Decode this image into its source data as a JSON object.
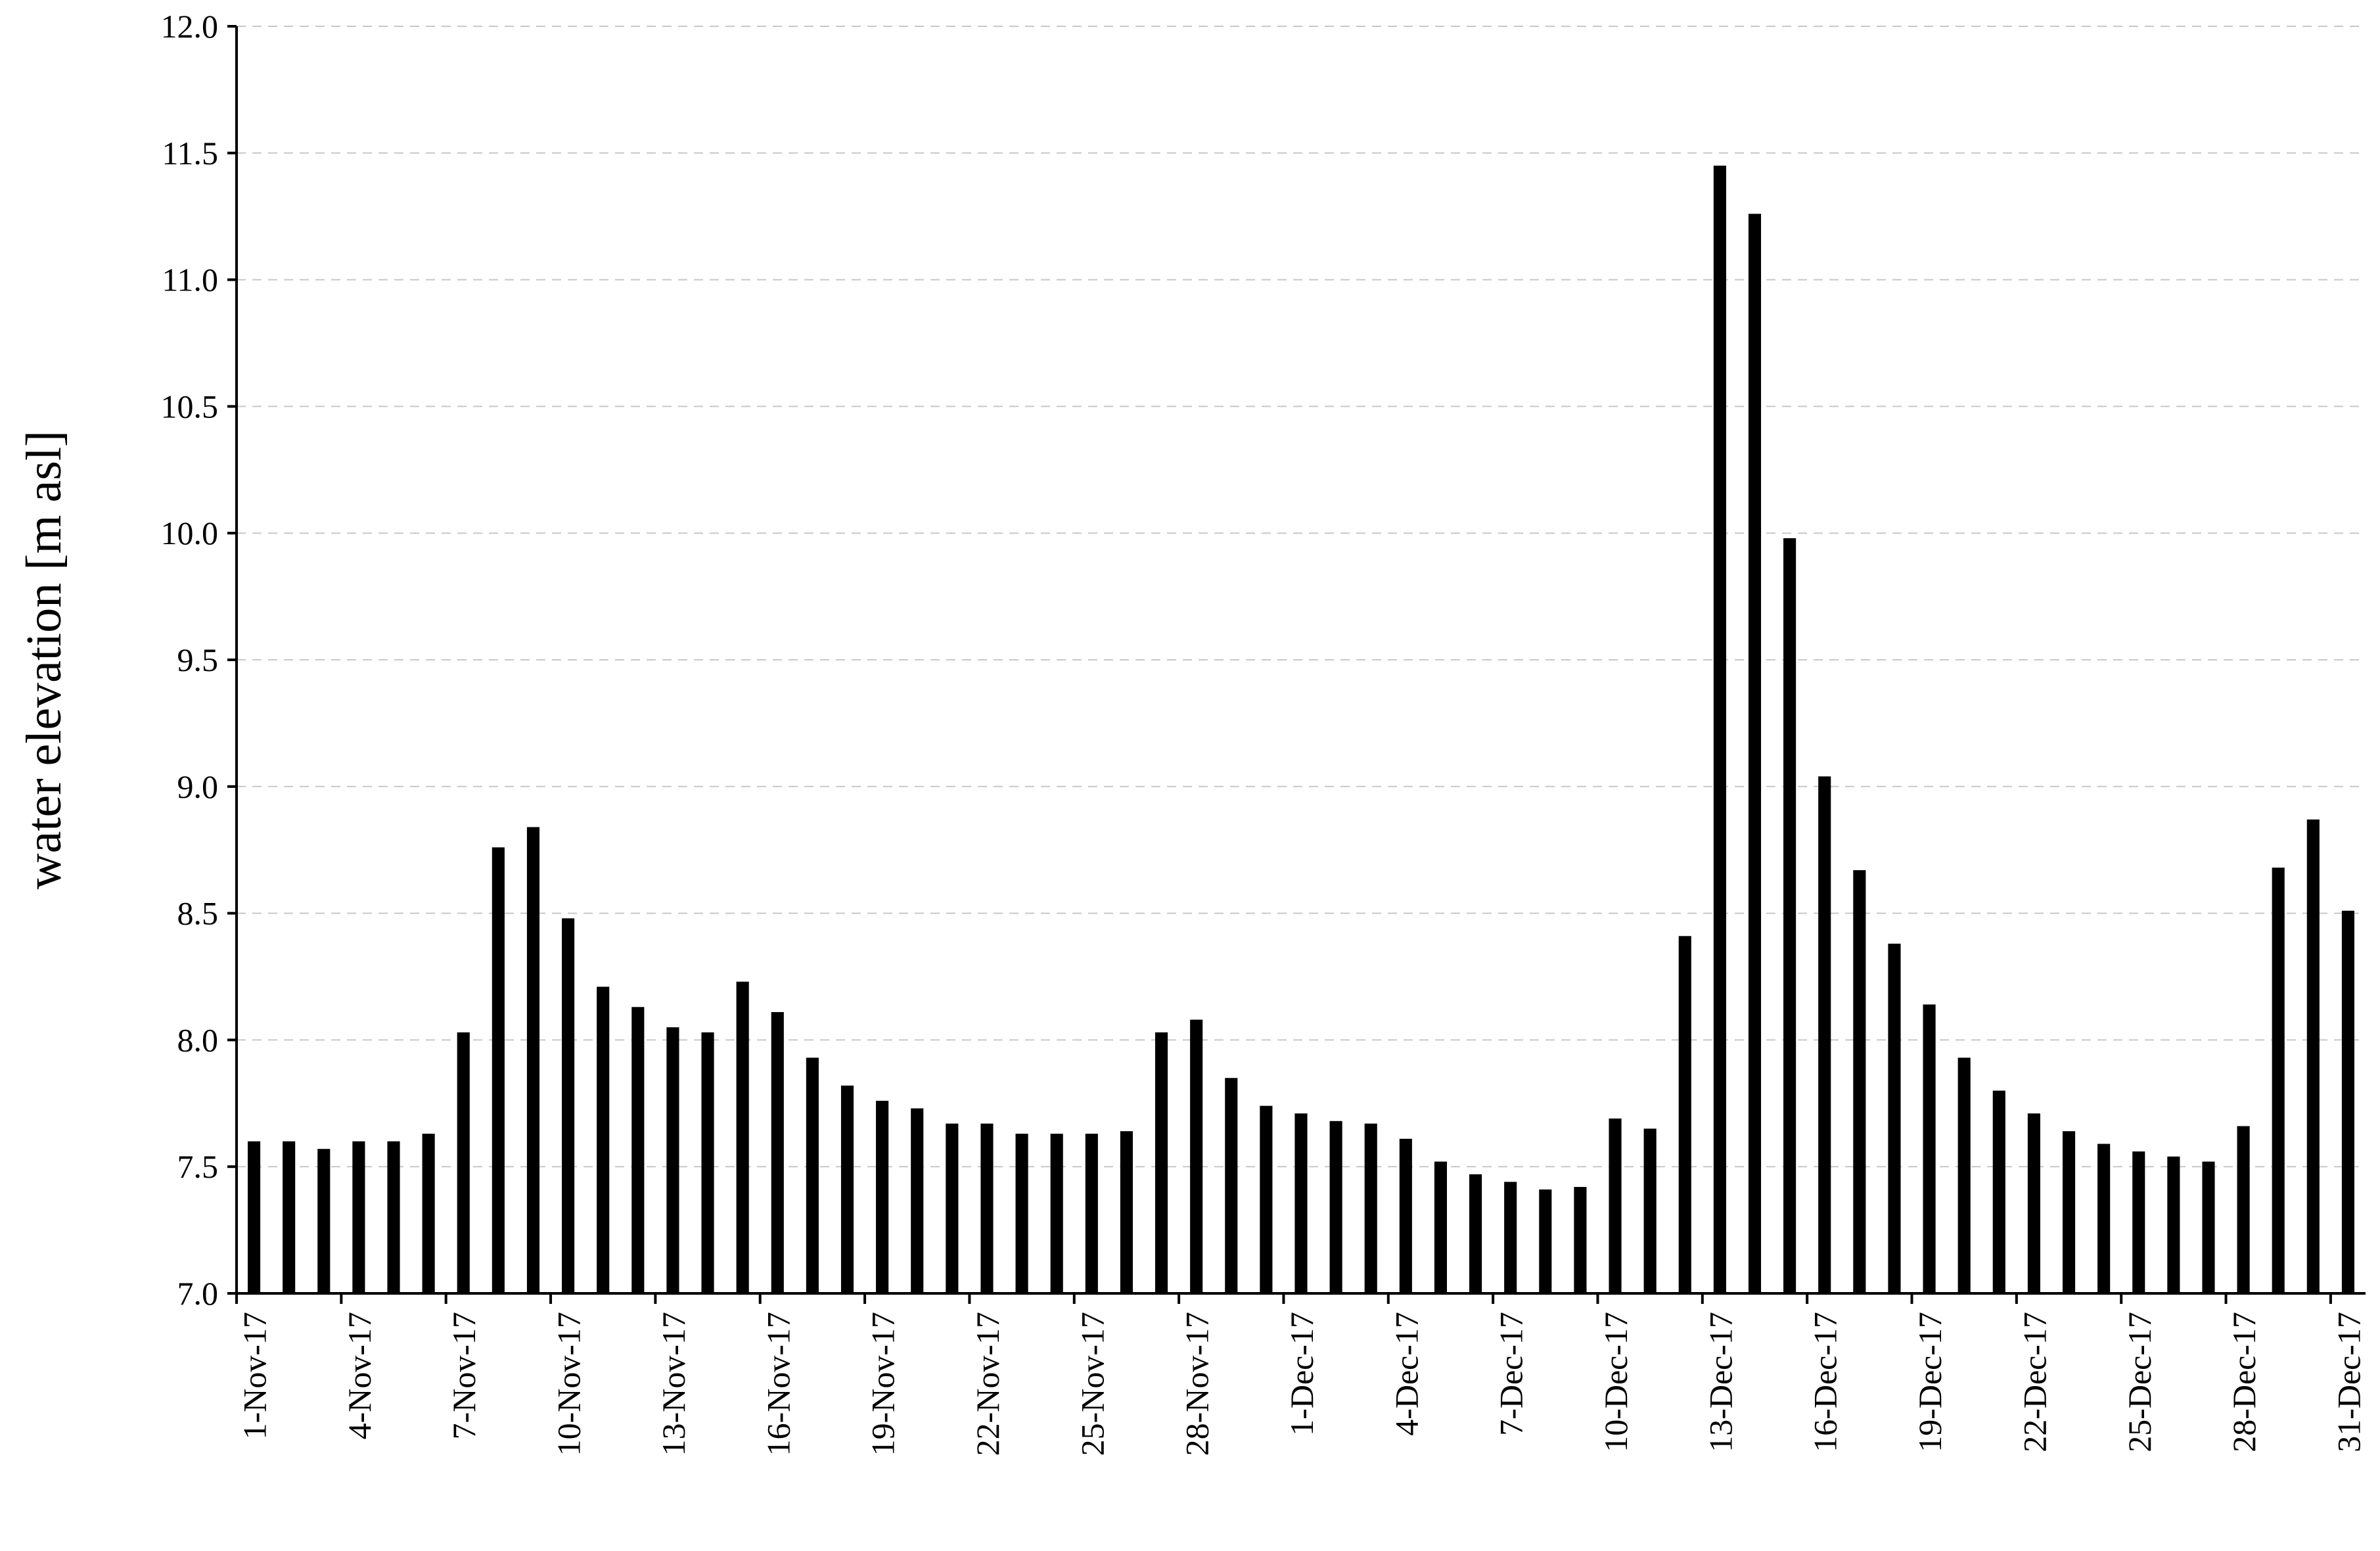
{
  "chart_data": {
    "type": "bar",
    "title": "",
    "xlabel": "",
    "ylabel": "water elevation [m asl]",
    "ylim": [
      7.0,
      12.0
    ],
    "y_ticks": [
      "7.0",
      "7.5",
      "8.0",
      "8.5",
      "9.0",
      "9.5",
      "10.0",
      "10.5",
      "11.0",
      "11.5",
      "12.0"
    ],
    "grid": "horizontal dashed",
    "bar_color": "#000000",
    "categories": [
      "1-Nov-17",
      "2-Nov-17",
      "3-Nov-17",
      "4-Nov-17",
      "5-Nov-17",
      "6-Nov-17",
      "7-Nov-17",
      "8-Nov-17",
      "9-Nov-17",
      "10-Nov-17",
      "11-Nov-17",
      "12-Nov-17",
      "13-Nov-17",
      "14-Nov-17",
      "15-Nov-17",
      "16-Nov-17",
      "17-Nov-17",
      "18-Nov-17",
      "19-Nov-17",
      "20-Nov-17",
      "21-Nov-17",
      "22-Nov-17",
      "23-Nov-17",
      "24-Nov-17",
      "25-Nov-17",
      "26-Nov-17",
      "27-Nov-17",
      "28-Nov-17",
      "29-Nov-17",
      "30-Nov-17",
      "1-Dec-17",
      "2-Dec-17",
      "3-Dec-17",
      "4-Dec-17",
      "5-Dec-17",
      "6-Dec-17",
      "7-Dec-17",
      "8-Dec-17",
      "9-Dec-17",
      "10-Dec-17",
      "11-Dec-17",
      "12-Dec-17",
      "13-Dec-17",
      "14-Dec-17",
      "15-Dec-17",
      "16-Dec-17",
      "17-Dec-17",
      "18-Dec-17",
      "19-Dec-17",
      "20-Dec-17",
      "21-Dec-17",
      "22-Dec-17",
      "23-Dec-17",
      "24-Dec-17",
      "25-Dec-17",
      "26-Dec-17",
      "27-Dec-17",
      "28-Dec-17",
      "29-Dec-17",
      "30-Dec-17",
      "31-Dec-17"
    ],
    "x_tick_labels": [
      "1-Nov-17",
      "4-Nov-17",
      "7-Nov-17",
      "10-Nov-17",
      "13-Nov-17",
      "16-Nov-17",
      "19-Nov-17",
      "22-Nov-17",
      "25-Nov-17",
      "28-Nov-17",
      "1-Dec-17",
      "4-Dec-17",
      "7-Dec-17",
      "10-Dec-17",
      "13-Dec-17",
      "16-Dec-17",
      "19-Dec-17",
      "22-Dec-17",
      "25-Dec-17",
      "28-Dec-17",
      "31-Dec-17"
    ],
    "values": [
      7.6,
      7.6,
      7.57,
      7.6,
      7.6,
      7.63,
      8.03,
      8.76,
      8.84,
      8.48,
      8.21,
      8.13,
      8.05,
      8.03,
      8.23,
      8.11,
      7.93,
      7.82,
      7.76,
      7.73,
      7.67,
      7.67,
      7.63,
      7.63,
      7.63,
      7.64,
      8.03,
      8.08,
      7.85,
      7.74,
      7.71,
      7.68,
      7.67,
      7.61,
      7.52,
      7.47,
      7.44,
      7.41,
      7.42,
      7.69,
      7.65,
      8.41,
      11.45,
      11.26,
      9.98,
      9.04,
      8.67,
      8.38,
      8.14,
      7.93,
      7.8,
      7.71,
      7.64,
      7.59,
      7.56,
      7.54,
      7.52,
      7.66,
      8.68,
      8.87,
      8.51
    ]
  }
}
